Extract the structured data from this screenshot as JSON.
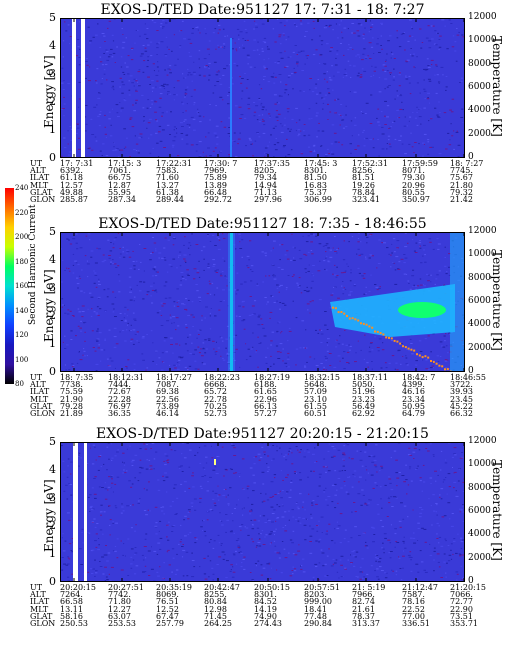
{
  "colorbar": {
    "label": "Second Harmonic Current",
    "ticks": [
      "240",
      "220",
      "200",
      "180",
      "160",
      "140",
      "120",
      "100",
      "80"
    ],
    "colors": [
      "#ff0000",
      "#ff6a00",
      "#ffd000",
      "#c8ff00",
      "#00ff60",
      "#00e0d0",
      "#0090ff",
      "#1040ff",
      "#1818c0",
      "#3010a0",
      "#000000"
    ]
  },
  "panels": [
    {
      "title": "EXOS-D/TED   Date:951127  17: 7:31 - 18: 7:27",
      "ylabel": "Energy [eV]",
      "rlabel": "Temperature [K]",
      "yticks": [
        "0",
        "1",
        "2",
        "3",
        "4",
        "5"
      ],
      "rticks": [
        "0",
        "2000",
        "4000",
        "6000",
        "8000",
        "10000",
        "12000"
      ],
      "ephem_labels": [
        "UT",
        "ALT",
        "ILAT",
        "MLT",
        "GLAT",
        "GLON"
      ],
      "columns": [
        [
          "17: 7:31",
          "6392.",
          "61.18",
          "12.57",
          "49.88",
          "285.87"
        ],
        [
          "17:15: 3",
          "7061.",
          "66.75",
          "12.87",
          "55.95",
          "287.34"
        ],
        [
          "17:22:31",
          "7583.",
          "71.60",
          "13.27",
          "61.38",
          "289.44"
        ],
        [
          "17:30: 7",
          "7969.",
          "75.89",
          "13.89",
          "66.48",
          "292.72"
        ],
        [
          "17:37:35",
          "8205.",
          "79.34",
          "14.94",
          "71.13",
          "297.96"
        ],
        [
          "17:45: 3",
          "8301.",
          "81.50",
          "16.83",
          "75.37",
          "306.99"
        ],
        [
          "17:52:31",
          "8256.",
          "81.51",
          "19.26",
          "78.84",
          "323.41"
        ],
        [
          "17:59:59",
          "8071.",
          "79.30",
          "20.96",
          "80.55",
          "350.97"
        ],
        [
          "18: 7:27",
          "7745.",
          "75.67",
          "21.80",
          "79.32",
          "21.42"
        ]
      ]
    },
    {
      "title": "EXOS-D/TED   Date:951127  18: 7:35 - 18:46:55",
      "ylabel": "Energy [eV]",
      "rlabel": "Temperature [K]",
      "yticks": [
        "0",
        "1",
        "2",
        "3",
        "4",
        "5"
      ],
      "rticks": [
        "0",
        "2000",
        "4000",
        "6000",
        "8000",
        "10000",
        "12000"
      ],
      "ephem_labels": [
        "UT",
        "ALT",
        "ILAT",
        "MLT",
        "GLAT",
        "GLON"
      ],
      "columns": [
        [
          "18: 7:35",
          "7738.",
          "75.59",
          "21.90",
          "79.28",
          "21.89"
        ],
        [
          "18:12:31",
          "7444.",
          "72.67",
          "22.28",
          "76.97",
          "36.35"
        ],
        [
          "18:17:27",
          "7087.",
          "69.38",
          "22.56",
          "73.89",
          "46.14"
        ],
        [
          "18:22:23",
          "6668.",
          "65.72",
          "22.78",
          "70.25",
          "52.73"
        ],
        [
          "18:27:19",
          "6188.",
          "61.65",
          "22.96",
          "66.13",
          "57.27"
        ],
        [
          "18:32:15",
          "5648.",
          "57.09",
          "23.10",
          "61.55",
          "60.51"
        ],
        [
          "18:37:11",
          "5050.",
          "51.96",
          "23.23",
          "56.49",
          "62.92"
        ],
        [
          "18:42: 7",
          "4399.",
          "46.16",
          "23.34",
          "50.95",
          "64.79"
        ],
        [
          "18:46:55",
          "3722.",
          "39.93",
          "23.45",
          "45.22",
          "66.32"
        ]
      ]
    },
    {
      "title": "EXOS-D/TED   Date:951127  20:20:15 - 21:20:15",
      "ylabel": "Energy [eV]",
      "rlabel": "Temperature [K]",
      "yticks": [
        "0",
        "1",
        "2",
        "3",
        "4",
        "5"
      ],
      "rticks": [
        "0",
        "2000",
        "4000",
        "6000",
        "8000",
        "10000",
        "12000"
      ],
      "ephem_labels": [
        "UT",
        "ALT",
        "ILAT",
        "MLT",
        "GLAT",
        "GLON"
      ],
      "columns": [
        [
          "20:20:15",
          "7264.",
          "66.58",
          "13.11",
          "58.16",
          "250.53"
        ],
        [
          "20:27:51",
          "7742.",
          "71.80",
          "12.27",
          "63.07",
          "253.53"
        ],
        [
          "20:35:19",
          "8069.",
          "76.51",
          "12.52",
          "67.47",
          "257.79"
        ],
        [
          "20:42:47",
          "8255.",
          "80.84",
          "12.98",
          "71.45",
          "264.25"
        ],
        [
          "20:50:15",
          "8301.",
          "84.52",
          "14.19",
          "74.90",
          "274.43"
        ],
        [
          "20:57:51",
          "8203.",
          "999.00",
          "18.41",
          "77.48",
          "290.84"
        ],
        [
          "21: 5:19",
          "7966.",
          "82.74",
          "21.61",
          "78.37",
          "313.37"
        ],
        [
          "21:12:47",
          "7587.",
          "78.16",
          "22.52",
          "77.00",
          "336.51"
        ],
        [
          "21:20:15",
          "7066.",
          "72.77",
          "22.90",
          "73.51",
          "353.71"
        ]
      ]
    }
  ]
}
